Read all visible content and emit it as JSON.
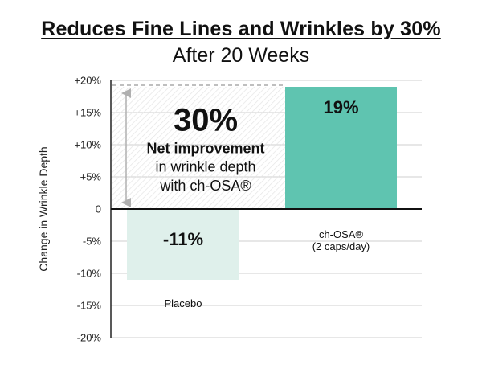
{
  "chart_data": {
    "type": "bar",
    "title": "Reduces Fine Lines and Wrinkles by 30%",
    "subtitle": "After 20 Weeks",
    "ylabel": "Change in Wrinkle Depth",
    "ylim": [
      -20,
      20
    ],
    "yticks": [
      20,
      15,
      10,
      5,
      0,
      -5,
      -10,
      -15,
      -20
    ],
    "ytick_labels": [
      "+20%",
      "+15%",
      "+10%",
      "+5%",
      "0",
      "-5%",
      "-10%",
      "-15%",
      "-20%"
    ],
    "categories": [
      "Placebo",
      "ch-OSA® (2 caps/day)"
    ],
    "category_label_lines": [
      [
        "Placebo"
      ],
      [
        "ch-OSA®",
        "(2 caps/day)"
      ]
    ],
    "values": [
      -11,
      19
    ],
    "value_labels": [
      "-11%",
      "19%"
    ],
    "bar_colors": [
      "#dff0eb",
      "#5fc4b0"
    ],
    "grid": true,
    "annotation": {
      "big": "30%",
      "bold": "Net improvement",
      "line2": "in wrinkle depth",
      "line3": "with ch-OSA®",
      "range": [
        -11,
        19
      ]
    }
  }
}
